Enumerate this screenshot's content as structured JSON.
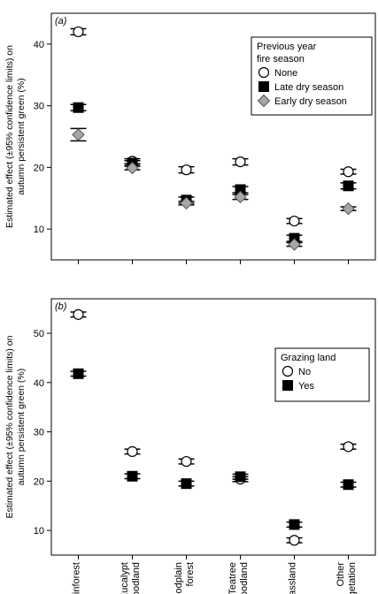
{
  "chart_data": [
    {
      "type": "scatter",
      "panel_label": "(a)",
      "ylabel": "Estimated effect (±95% confidence limits) on autumn persistent green (%)",
      "ylabel_lines": [
        "Estimated effect (±95% confidence limits) on",
        "autumn persistent green (%)"
      ],
      "categories": [
        "Rainforest",
        "Eucalypt woodland",
        "Floodplain forest",
        "Teatree woodland",
        "Grassland",
        "Other vegetation"
      ],
      "ylim": [
        5,
        45
      ],
      "yticks": [
        10,
        20,
        30,
        40
      ],
      "grid": false,
      "legend": {
        "title_lines": [
          "Previous year",
          "fire season"
        ],
        "placement": "top-right"
      },
      "series": [
        {
          "name": "None",
          "marker": "circle",
          "color": "#ffffff",
          "values": [
            42.0,
            21.0,
            19.6,
            20.9,
            11.3,
            19.3
          ],
          "lower": [
            41.5,
            20.6,
            19.1,
            20.4,
            10.9,
            18.9
          ],
          "upper": [
            42.5,
            21.4,
            20.1,
            21.4,
            11.7,
            19.7
          ]
        },
        {
          "name": "Late dry season",
          "marker": "square",
          "color": "#000000",
          "values": [
            29.7,
            20.7,
            14.7,
            16.4,
            8.5,
            17.0
          ],
          "lower": [
            29.2,
            20.3,
            14.2,
            15.9,
            8.0,
            16.5
          ],
          "upper": [
            30.2,
            21.1,
            15.2,
            16.9,
            9.0,
            17.5
          ]
        },
        {
          "name": "Early dry season",
          "marker": "diamond",
          "color": "#a6a6a6",
          "values": [
            25.3,
            19.9,
            14.2,
            15.2,
            7.5,
            13.3
          ],
          "lower": [
            24.3,
            19.6,
            13.9,
            14.8,
            7.2,
            13.0
          ],
          "upper": [
            26.3,
            20.2,
            14.5,
            15.6,
            7.8,
            13.6
          ]
        }
      ]
    },
    {
      "type": "scatter",
      "panel_label": "(b)",
      "ylabel": "Estimated effect (±95% confidence limits) on autumn persistent green (%)",
      "ylabel_lines": [
        "Estimated effect (±95% confidence limits) on",
        "autumn persistent green (%)"
      ],
      "categories": [
        "Rainforest",
        "Eucalypt woodland",
        "Floodplain forest",
        "Teatree woodland",
        "Grassland",
        "Other vegetation"
      ],
      "category_label_lines": [
        [
          "Rainforest"
        ],
        [
          "Eucalypt",
          "woodland"
        ],
        [
          "Floodplain",
          "forest"
        ],
        [
          "Teatree",
          "woodland"
        ],
        [
          "Grassland"
        ],
        [
          "Other",
          "vegetation"
        ]
      ],
      "ylim": [
        5,
        57
      ],
      "yticks": [
        10,
        20,
        30,
        40,
        50
      ],
      "grid": false,
      "legend": {
        "title_lines": [
          "Grazing land"
        ],
        "placement": "top-right"
      },
      "series": [
        {
          "name": "No",
          "marker": "circle",
          "color": "#ffffff",
          "values": [
            53.8,
            26.0,
            24.0,
            20.4,
            8.0,
            27.0
          ],
          "lower": [
            53.3,
            25.5,
            23.5,
            19.9,
            7.5,
            26.5
          ],
          "upper": [
            54.3,
            26.5,
            24.5,
            20.9,
            8.5,
            27.5
          ]
        },
        {
          "name": "Yes",
          "marker": "square",
          "color": "#000000",
          "values": [
            41.8,
            21.0,
            19.5,
            20.9,
            11.2,
            19.3
          ],
          "lower": [
            41.3,
            20.5,
            19.0,
            20.4,
            10.7,
            18.8
          ],
          "upper": [
            42.3,
            21.5,
            20.0,
            21.4,
            11.7,
            19.8
          ]
        }
      ]
    }
  ]
}
